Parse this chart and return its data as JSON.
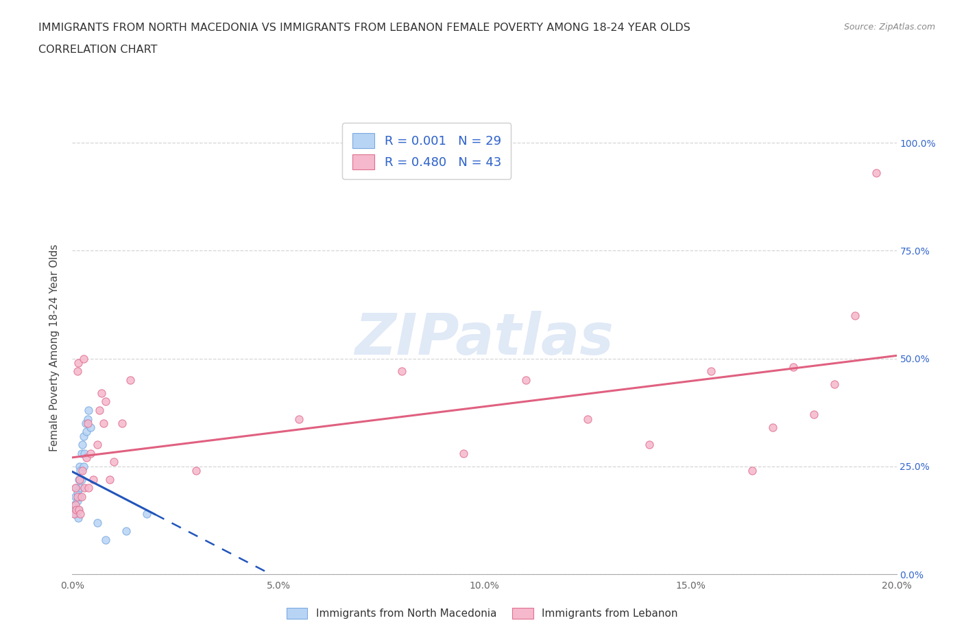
{
  "title_line1": "IMMIGRANTS FROM NORTH MACEDONIA VS IMMIGRANTS FROM LEBANON FEMALE POVERTY AMONG 18-24 YEAR OLDS",
  "title_line2": "CORRELATION CHART",
  "source": "Source: ZipAtlas.com",
  "ylabel": "Female Poverty Among 18-24 Year Olds",
  "legend1_label": "Immigrants from North Macedonia",
  "legend2_label": "Immigrants from Lebanon",
  "r1": 0.001,
  "n1": 29,
  "r2": 0.48,
  "n2": 43,
  "color_macedonia_fill": "#b8d4f5",
  "color_macedonia_edge": "#7aaae0",
  "color_macedonia_line": "#2255bb",
  "color_lebanon_fill": "#f5b8cc",
  "color_lebanon_edge": "#e07090",
  "color_lebanon_line": "#e06080",
  "color_r_text": "#3366cc",
  "watermark": "ZIPatlas",
  "xlim": [
    0.0,
    0.2
  ],
  "ylim": [
    0.0,
    1.05
  ],
  "ytick_vals": [
    0.0,
    0.25,
    0.5,
    0.75,
    1.0
  ],
  "xtick_vals": [
    0.0,
    0.05,
    0.1,
    0.15,
    0.2
  ],
  "macedonia_x": [
    0.0005,
    0.0007,
    0.0008,
    0.001,
    0.001,
    0.0012,
    0.0013,
    0.0014,
    0.0015,
    0.0016,
    0.0017,
    0.0018,
    0.002,
    0.002,
    0.0022,
    0.0023,
    0.0025,
    0.0027,
    0.0028,
    0.003,
    0.0032,
    0.0035,
    0.0038,
    0.004,
    0.0045,
    0.006,
    0.008,
    0.013,
    0.018
  ],
  "macedonia_y": [
    0.16,
    0.14,
    0.18,
    0.15,
    0.2,
    0.17,
    0.19,
    0.13,
    0.15,
    0.22,
    0.25,
    0.18,
    0.2,
    0.24,
    0.22,
    0.28,
    0.3,
    0.25,
    0.32,
    0.28,
    0.35,
    0.33,
    0.36,
    0.38,
    0.34,
    0.12,
    0.08,
    0.1,
    0.14
  ],
  "lebanon_x": [
    0.0005,
    0.0007,
    0.0008,
    0.001,
    0.0012,
    0.0013,
    0.0015,
    0.0016,
    0.0018,
    0.002,
    0.0022,
    0.0025,
    0.0027,
    0.003,
    0.0035,
    0.0038,
    0.004,
    0.0045,
    0.005,
    0.006,
    0.0065,
    0.007,
    0.0075,
    0.008,
    0.009,
    0.01,
    0.012,
    0.014,
    0.03,
    0.055,
    0.08,
    0.095,
    0.11,
    0.125,
    0.14,
    0.155,
    0.165,
    0.17,
    0.175,
    0.18,
    0.185,
    0.19,
    0.195
  ],
  "lebanon_y": [
    0.14,
    0.16,
    0.2,
    0.15,
    0.18,
    0.47,
    0.49,
    0.15,
    0.22,
    0.14,
    0.18,
    0.24,
    0.5,
    0.2,
    0.27,
    0.35,
    0.2,
    0.28,
    0.22,
    0.3,
    0.38,
    0.42,
    0.35,
    0.4,
    0.22,
    0.26,
    0.35,
    0.45,
    0.24,
    0.36,
    0.47,
    0.28,
    0.45,
    0.36,
    0.3,
    0.47,
    0.24,
    0.34,
    0.48,
    0.37,
    0.44,
    0.6,
    0.93
  ]
}
